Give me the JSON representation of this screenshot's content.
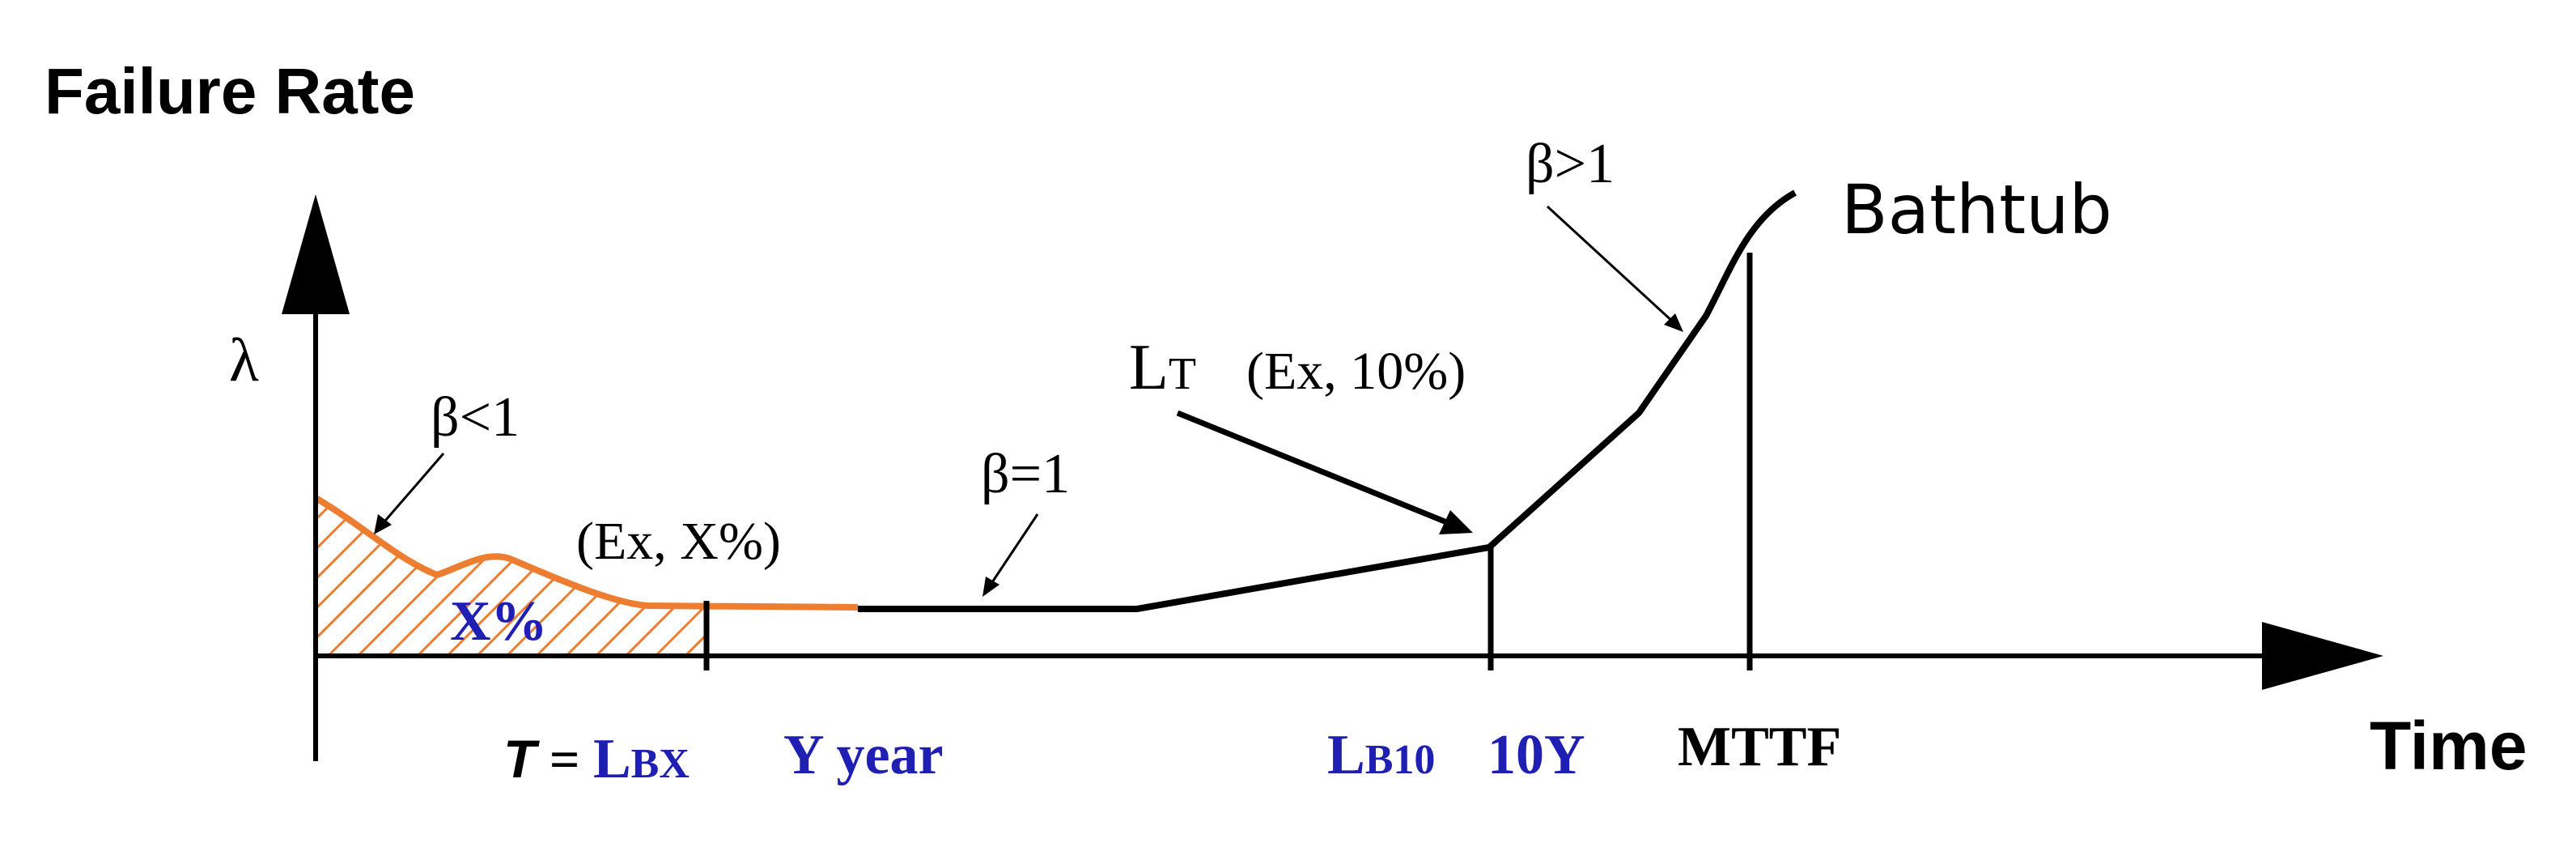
{
  "labels": {
    "y_title": "Failure Rate",
    "lambda": "λ",
    "x_title": "Time",
    "beta_lt": "β<1",
    "beta_eq": "β=1",
    "beta_gt": "β>1",
    "ex_x": "(Ex, X%)",
    "x_percent": "X%",
    "lt_main": "L",
    "lt_sub": "T",
    "lt_ex": "(Ex, 10%)",
    "bathtub": "Bathtub"
  },
  "ticks": {
    "t_prefix": "T",
    "t_equals": " = ",
    "lbx_main": "L",
    "lbx_sub": "BX",
    "y_year": "Y year",
    "lb10_main": "L",
    "lb10_sub": "B10",
    "ten_y": "10Y",
    "mttf": "MTTF"
  },
  "colors": {
    "curve_early": "#ED7D31",
    "curve_main": "#000000",
    "blue_text": "#1f1fb4",
    "hatch": "#ED7D31"
  }
}
